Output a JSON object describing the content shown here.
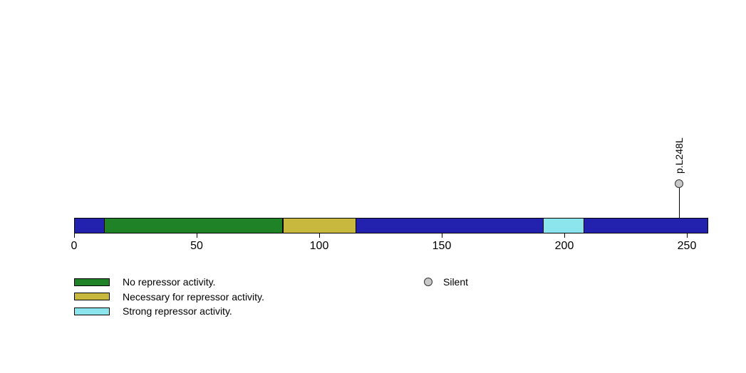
{
  "chart_data": {
    "type": "protein-lollipop",
    "protein_length": 259,
    "axis": {
      "min": 0,
      "max": 259,
      "tick_values": [
        0,
        50,
        100,
        150,
        200,
        250
      ]
    },
    "backbone": {
      "color": "#2222AE",
      "border_color": "#000000"
    },
    "regions": [
      {
        "start": 12,
        "end": 85,
        "color": "#208226",
        "label": "No repressor activity."
      },
      {
        "start": 85,
        "end": 115,
        "color": "#C8B83E",
        "label": "Necessary for repressor activity."
      },
      {
        "start": 191,
        "end": 208,
        "color": "#8CE4EC",
        "label": "Strong repressor activity."
      }
    ],
    "markers": [
      {
        "position": 248,
        "label": "p.L248L",
        "type": "Silent",
        "color": "#C8C8C8"
      }
    ],
    "marker_types": [
      {
        "label": "Silent",
        "color": "#C8C8C8"
      }
    ],
    "legend_position": "bottom"
  }
}
